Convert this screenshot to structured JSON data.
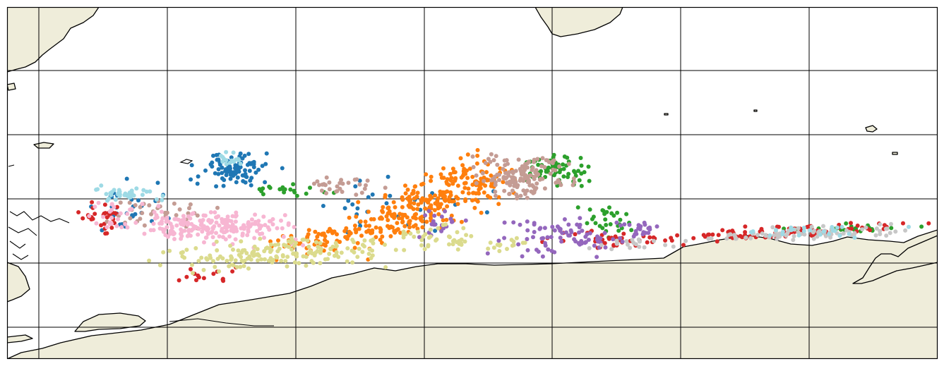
{
  "map": {
    "land_color": "#efedda",
    "ocean_color": "#ffffff",
    "coastline_color": "#000000",
    "gridline_color": "#000000",
    "graticule": {
      "meridian_count": 7,
      "parallel_count": 5
    },
    "point_series": [
      {
        "color": "#1f77b4"
      },
      {
        "color": "#ff7f0e"
      },
      {
        "color": "#2ca02c"
      },
      {
        "color": "#d62728"
      },
      {
        "color": "#9467bd"
      },
      {
        "color": "#c49c94"
      },
      {
        "color": "#f7b6d2"
      },
      {
        "color": "#c7c7c7"
      },
      {
        "color": "#dbdb8d"
      },
      {
        "color": "#9edae5"
      }
    ]
  }
}
